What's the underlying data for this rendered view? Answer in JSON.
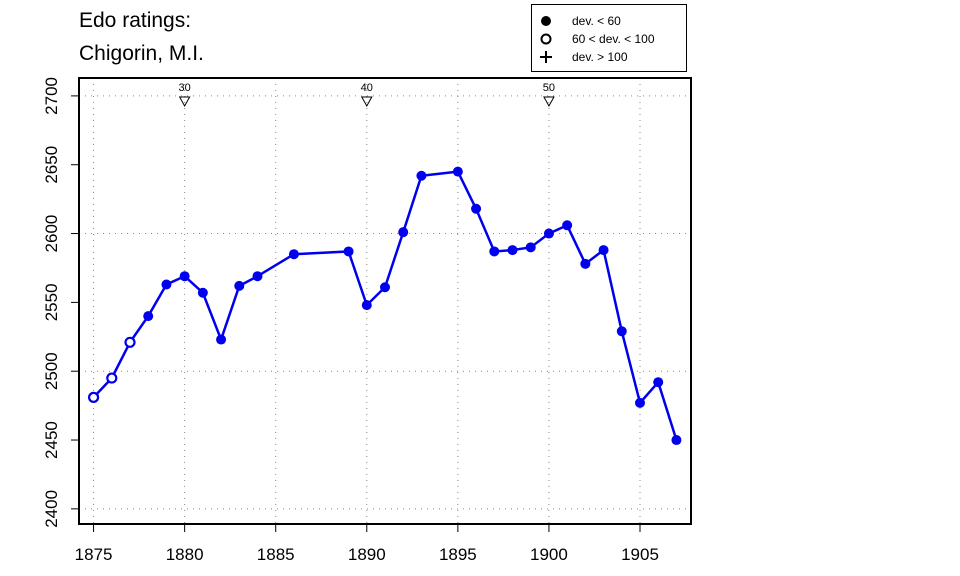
{
  "chart_data": {
    "type": "line",
    "title_lines": [
      "Edo ratings:",
      "Chigorin, M.I."
    ],
    "xlabel": "",
    "ylabel": "",
    "xlim": [
      1874.2,
      1907.8
    ],
    "ylim": [
      2389,
      2713
    ],
    "x_ticks": [
      1875,
      1880,
      1885,
      1890,
      1895,
      1900,
      1905
    ],
    "y_ticks": [
      2400,
      2450,
      2500,
      2550,
      2600,
      2650,
      2700
    ],
    "grid": true,
    "grid_x": [
      1875,
      1880,
      1885,
      1890,
      1895,
      1900,
      1905
    ],
    "grid_y": [
      2400,
      2500,
      2600,
      2700
    ],
    "age_markers": [
      {
        "x": 1880,
        "label": "30"
      },
      {
        "x": 1890,
        "label": "40"
      },
      {
        "x": 1900,
        "label": "50"
      }
    ],
    "legend": {
      "placement": "top-right",
      "entries": [
        {
          "symbol": "filled-circle",
          "label": "dev. < 60"
        },
        {
          "symbol": "open-circle",
          "label": "60 < dev. < 100"
        },
        {
          "symbol": "plus",
          "label": "dev. > 100"
        }
      ]
    },
    "line_color": "#0000ee",
    "series": [
      {
        "points": [
          {
            "x": 1875,
            "y": 2481,
            "marker": "open-circle"
          },
          {
            "x": 1876,
            "y": 2495,
            "marker": "open-circle"
          },
          {
            "x": 1877,
            "y": 2521,
            "marker": "open-circle"
          },
          {
            "x": 1878,
            "y": 2540,
            "marker": "filled-circle"
          },
          {
            "x": 1879,
            "y": 2563,
            "marker": "filled-circle"
          },
          {
            "x": 1880,
            "y": 2569,
            "marker": "filled-circle"
          },
          {
            "x": 1881,
            "y": 2557,
            "marker": "filled-circle"
          },
          {
            "x": 1882,
            "y": 2523,
            "marker": "filled-circle"
          },
          {
            "x": 1883,
            "y": 2562,
            "marker": "filled-circle"
          },
          {
            "x": 1884,
            "y": 2569,
            "marker": "filled-circle"
          },
          {
            "x": 1886,
            "y": 2585,
            "marker": "filled-circle"
          },
          {
            "x": 1889,
            "y": 2587,
            "marker": "filled-circle"
          },
          {
            "x": 1890,
            "y": 2548,
            "marker": "filled-circle"
          },
          {
            "x": 1891,
            "y": 2561,
            "marker": "filled-circle"
          },
          {
            "x": 1892,
            "y": 2601,
            "marker": "filled-circle"
          },
          {
            "x": 1893,
            "y": 2642,
            "marker": "filled-circle"
          },
          {
            "x": 1895,
            "y": 2645,
            "marker": "filled-circle"
          },
          {
            "x": 1896,
            "y": 2618,
            "marker": "filled-circle"
          },
          {
            "x": 1897,
            "y": 2587,
            "marker": "filled-circle"
          },
          {
            "x": 1898,
            "y": 2588,
            "marker": "filled-circle"
          },
          {
            "x": 1899,
            "y": 2590,
            "marker": "filled-circle"
          },
          {
            "x": 1900,
            "y": 2600,
            "marker": "filled-circle"
          },
          {
            "x": 1901,
            "y": 2606,
            "marker": "filled-circle"
          },
          {
            "x": 1902,
            "y": 2578,
            "marker": "filled-circle"
          },
          {
            "x": 1903,
            "y": 2588,
            "marker": "filled-circle"
          },
          {
            "x": 1904,
            "y": 2529,
            "marker": "filled-circle"
          },
          {
            "x": 1905,
            "y": 2477,
            "marker": "filled-circle"
          },
          {
            "x": 1906,
            "y": 2492,
            "marker": "filled-circle"
          },
          {
            "x": 1907,
            "y": 2450,
            "marker": "filled-circle"
          }
        ]
      }
    ]
  }
}
